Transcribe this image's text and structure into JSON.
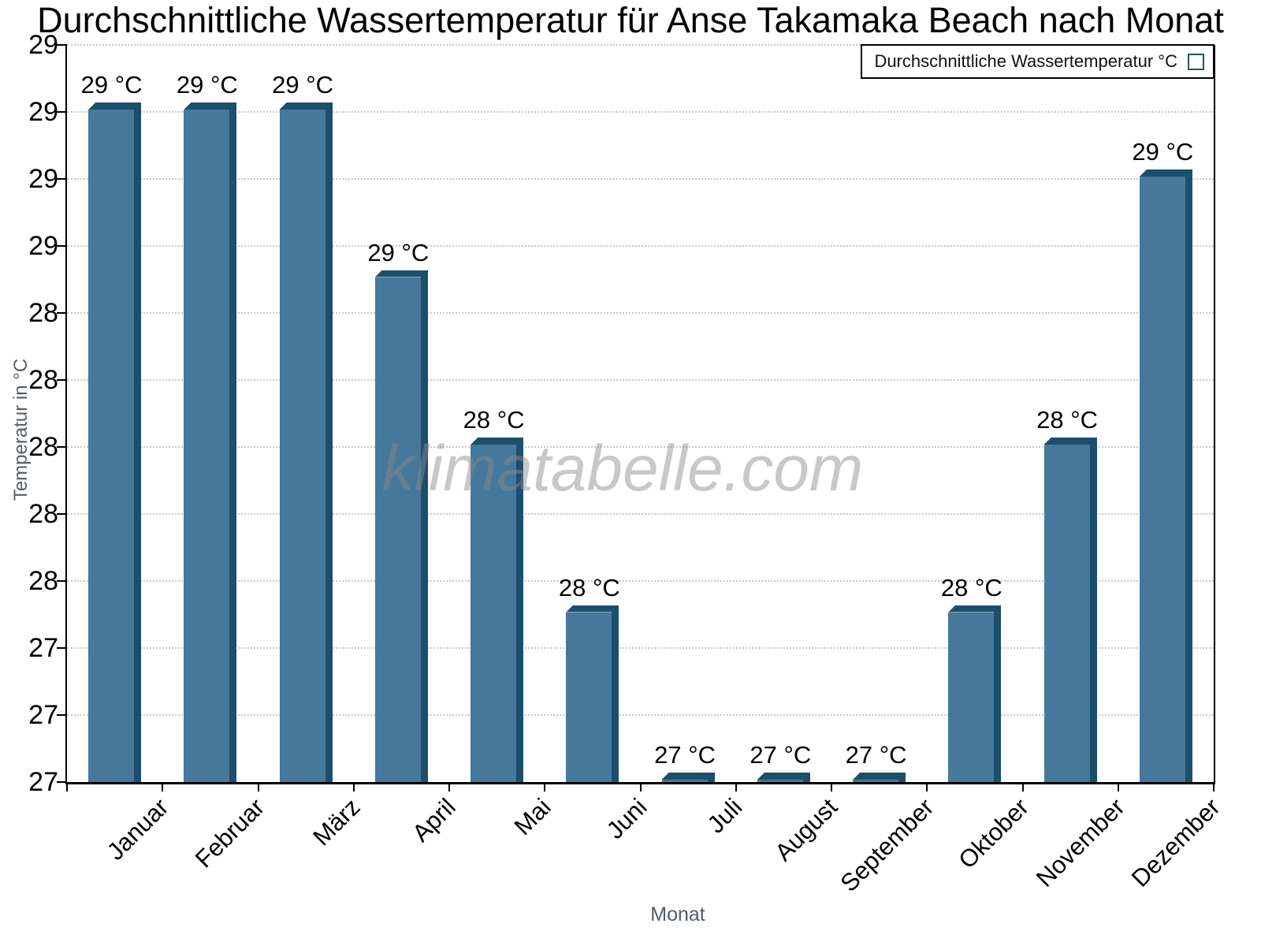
{
  "chart_data": {
    "type": "bar",
    "title": "Durchschnittliche Wassertemperatur für Anse Takamaka Beach nach Monat",
    "xlabel": "Monat",
    "ylabel": "Temperatur in °C",
    "legend": {
      "label": "Durchschnittliche Wassertemperatur °C",
      "position": "top-right"
    },
    "watermark": "klimatabelle.com",
    "categories": [
      "Januar",
      "Februar",
      "März",
      "April",
      "Mai",
      "Juni",
      "Juli",
      "August",
      "September",
      "Oktober",
      "November",
      "Dezember"
    ],
    "values": [
      29.0,
      29.0,
      29.0,
      28.5,
      28.0,
      27.5,
      27.0,
      27.0,
      27.0,
      27.5,
      28.0,
      28.8
    ],
    "bar_labels": [
      "29 °C",
      "29 °C",
      "29 °C",
      "29 °C",
      "28 °C",
      "28 °C",
      "27 °C",
      "27 °C",
      "27 °C",
      "28 °C",
      "28 °C",
      "29 °C"
    ],
    "ylim": [
      27.0,
      29.2
    ],
    "ytick_step": 0.2,
    "yticks": [
      29.2,
      29.0,
      28.8,
      28.6,
      28.4,
      28.2,
      28.0,
      27.8,
      27.6,
      27.4,
      27.2,
      27.0
    ],
    "ytick_labels": [
      "29",
      "29",
      "29",
      "29",
      "28",
      "28",
      "28",
      "28",
      "28",
      "27",
      "27",
      "27"
    ],
    "grid": "horizontal-dotted",
    "legend_visible": true,
    "colors": {
      "bar": "#45789B",
      "bar_shade": "#1C4E6E",
      "grid": "#C9C9C9",
      "axis": "#000000",
      "axis_title": "#545C64",
      "watermark": "#8A8A8A"
    }
  }
}
